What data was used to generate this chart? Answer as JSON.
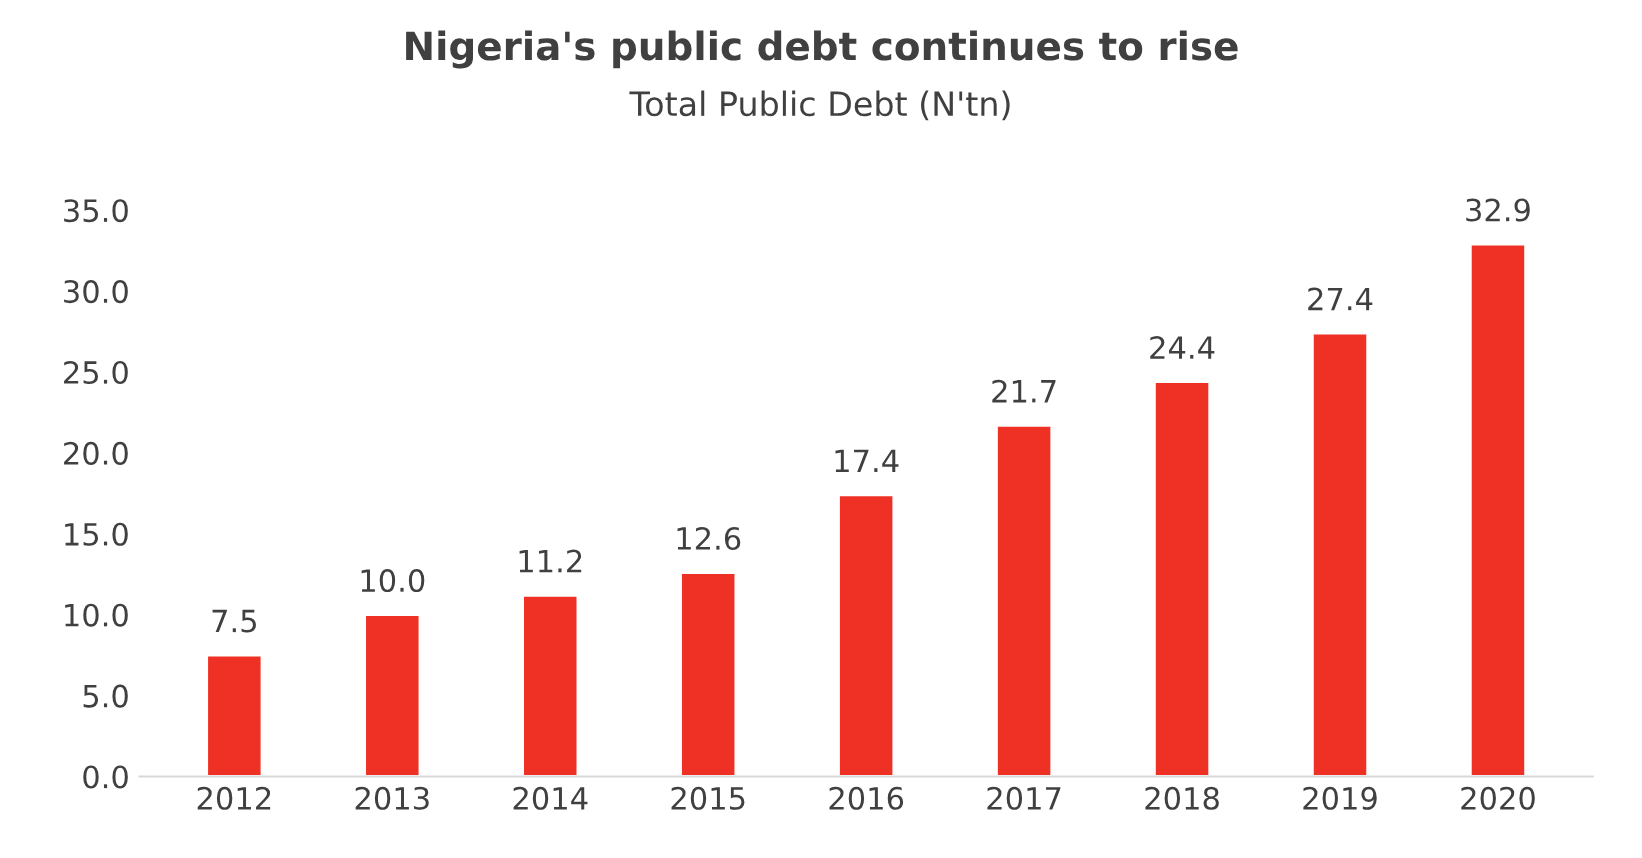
{
  "chart_data": {
    "type": "bar",
    "title": "Nigeria's public debt continues to rise",
    "subtitle": "Total Public Debt (N'tn)",
    "categories": [
      "2012",
      "2013",
      "2014",
      "2015",
      "2016",
      "2017",
      "2018",
      "2019",
      "2020"
    ],
    "values": [
      7.5,
      10.0,
      11.2,
      12.6,
      17.4,
      21.7,
      24.4,
      27.4,
      32.9
    ],
    "value_labels": [
      "7.5",
      "10.0",
      "11.2",
      "12.6",
      "17.4",
      "21.7",
      "24.4",
      "27.4",
      "32.9"
    ],
    "color": "#ee3124",
    "ylim": [
      0,
      35
    ],
    "yticks": [
      {
        "value": 0,
        "label": "0.0"
      },
      {
        "value": 5,
        "label": "5.0"
      },
      {
        "value": 10,
        "label": "10.0"
      },
      {
        "value": 15,
        "label": "15.0"
      },
      {
        "value": 20,
        "label": "20.0"
      },
      {
        "value": 25,
        "label": "25.0"
      },
      {
        "value": 30,
        "label": "30.0"
      },
      {
        "value": 35,
        "label": "35.0"
      }
    ],
    "grid": false,
    "legend": false
  }
}
